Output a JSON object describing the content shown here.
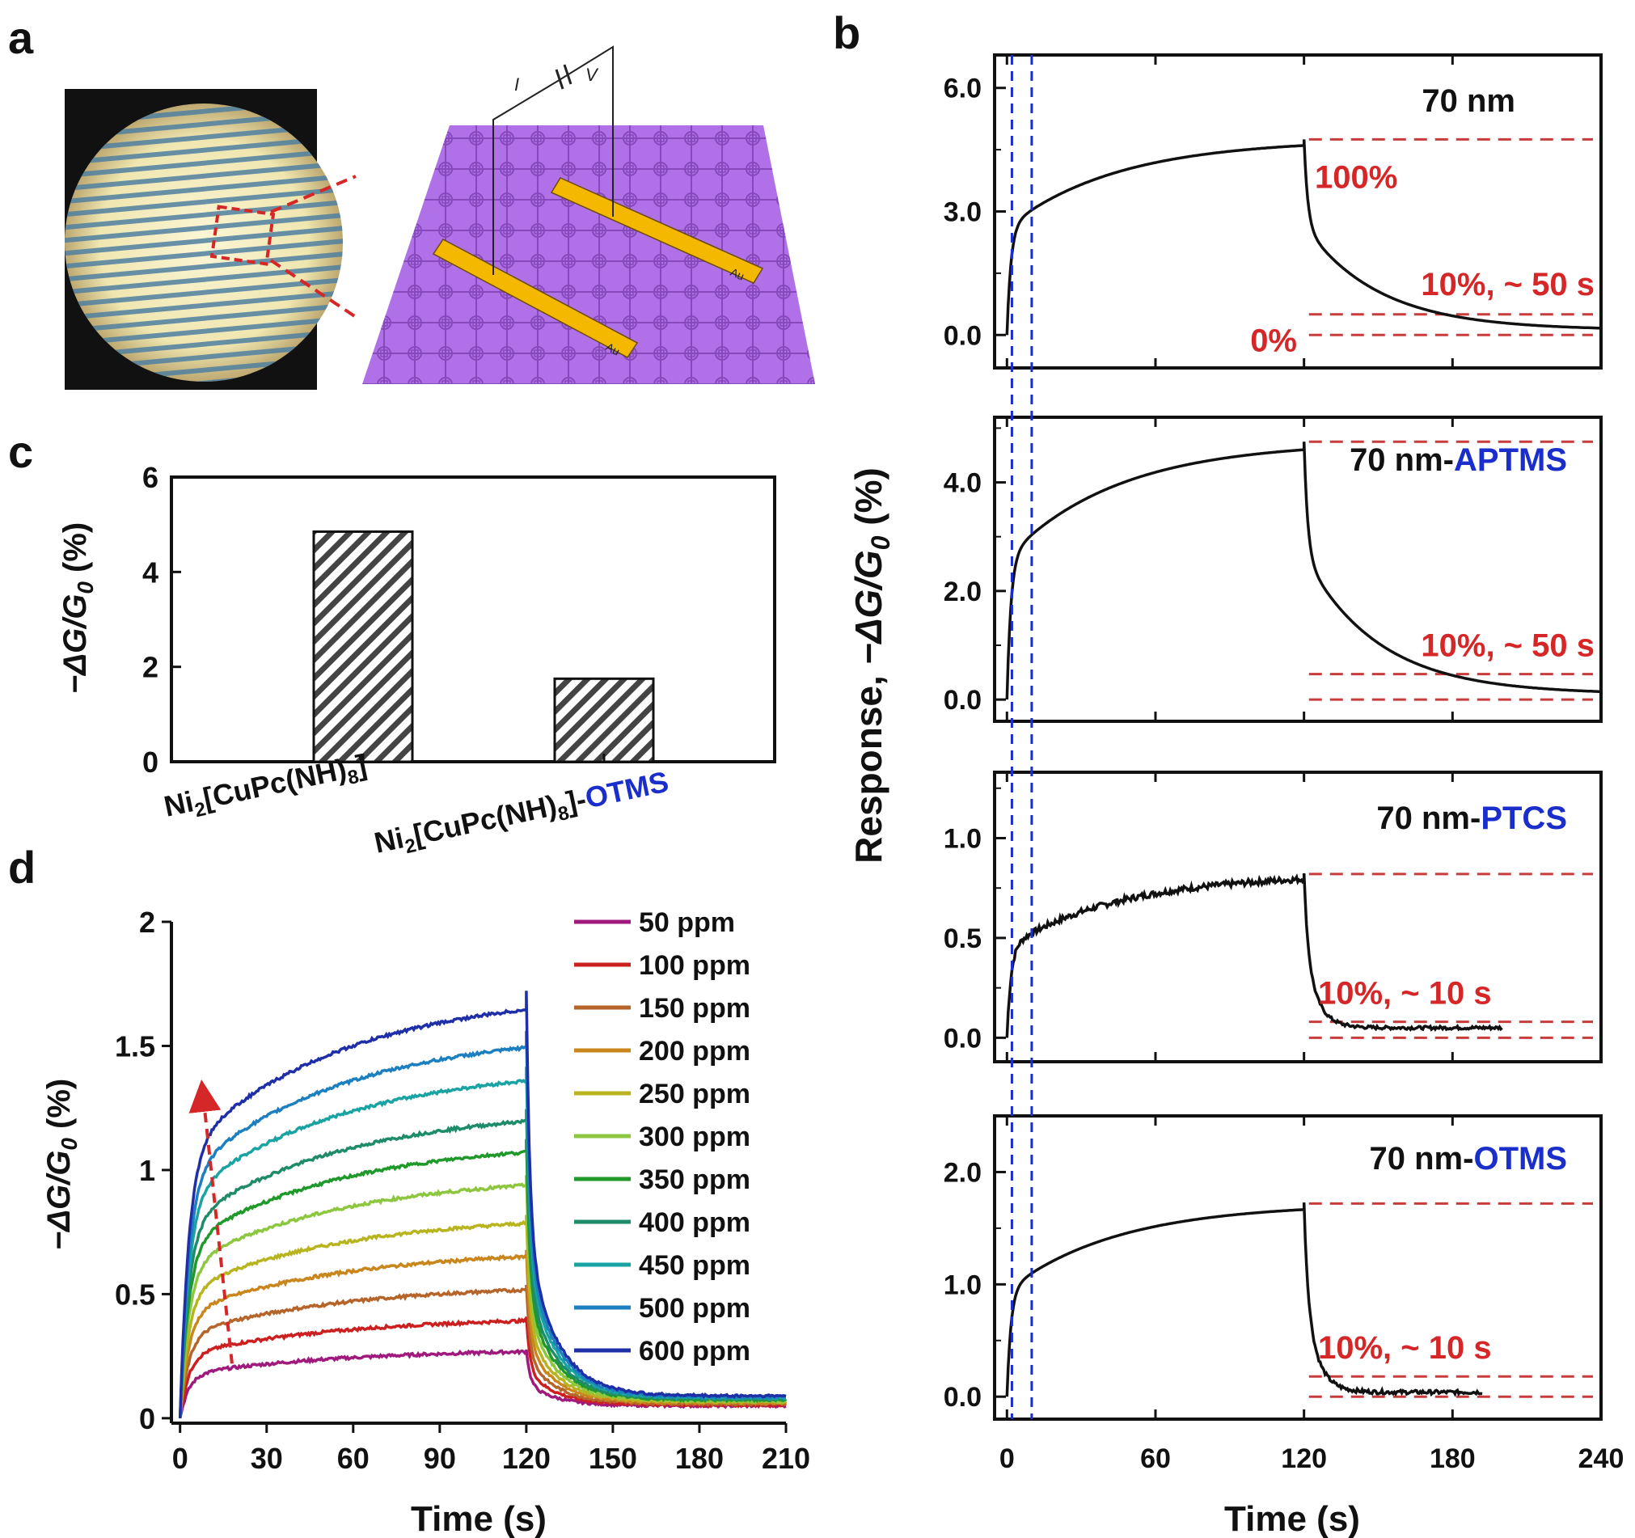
{
  "figure": {
    "panel_labels": [
      "a",
      "b",
      "c",
      "d"
    ],
    "panel_a": {
      "electrode_labels": [
        "Au",
        "Au"
      ],
      "circuit_labels": [
        "I",
        "V"
      ]
    }
  },
  "colors": {
    "black": "#111111",
    "red_dash": "#c83c3c",
    "red_text": "#d62728",
    "blue_text": "#1a2ecc",
    "blue_dash": "#1a2ecc",
    "purple": "#b070e8",
    "gold": "#f5b800"
  },
  "chart_data": [
    {
      "id": "b",
      "type": "line",
      "ylabel_prefix": "Response, ",
      "ylabel_math": "−ΔG/G",
      "ylabel_sub": "0",
      "ylabel_suffix": " (%)",
      "xlabel": "Time (s)",
      "x_ticks": [
        "0",
        "60",
        "120",
        "180",
        "240"
      ],
      "xlim": [
        -5,
        240
      ],
      "vertical_dashed_lines_x": [
        2,
        10
      ],
      "subplots": [
        {
          "label_black": "70 nm",
          "label_blue": "",
          "ylim": [
            -0.8,
            6.8
          ],
          "y_ticks": [
            "0.0",
            "3.0",
            "6.0"
          ],
          "y_tick_values": [
            0,
            3,
            6
          ],
          "series": {
            "rise_end_x": 120,
            "peak": 4.75,
            "initial": 0,
            "recovery_end_x": 240,
            "recovery_end": 0.12,
            "rise_shape": "log",
            "decay_tau": 30
          },
          "hlines": [
            4.75,
            0.5,
            0
          ],
          "annotations": [
            "100%",
            "10%, ~ 50 s",
            "0%"
          ]
        },
        {
          "label_black": "70 nm-",
          "label_blue": "APTMS",
          "ylim": [
            -0.4,
            5.2
          ],
          "y_ticks": [
            "0.0",
            "2.0",
            "4.0"
          ],
          "y_tick_values": [
            0,
            2,
            4
          ],
          "series": {
            "rise_end_x": 120,
            "peak": 4.75,
            "initial": 0,
            "recovery_end_x": 240,
            "recovery_end": 0.1,
            "rise_shape": "log",
            "decay_tau": 30
          },
          "hlines": [
            4.75,
            0.47,
            0
          ],
          "annotations": [
            "10%, ~ 50 s"
          ]
        },
        {
          "label_black": "70 nm-",
          "label_blue": "PTCS",
          "ylim": [
            -0.12,
            1.33
          ],
          "y_ticks": [
            "0.0",
            "0.5",
            "1.0"
          ],
          "y_tick_values": [
            0,
            0.5,
            1
          ],
          "series": {
            "rise_end_x": 120,
            "peak": 0.82,
            "initial": 0,
            "recovery_end_x": 200,
            "recovery_end": 0.05,
            "rise_shape": "log",
            "decay_tau": 5
          },
          "hlines": [
            0.82,
            0.08,
            0
          ],
          "annotations": [
            "10%, ~ 10 s"
          ]
        },
        {
          "label_black": "70 nm-",
          "label_blue": "OTMS",
          "ylim": [
            -0.2,
            2.5
          ],
          "y_ticks": [
            "0.0",
            "1.0",
            "2.0"
          ],
          "y_tick_values": [
            0,
            1,
            2
          ],
          "series": {
            "rise_end_x": 120,
            "peak": 1.72,
            "initial": 0,
            "recovery_end_x": 192,
            "recovery_end": 0.04,
            "rise_shape": "log",
            "decay_tau": 5
          },
          "hlines": [
            1.72,
            0.18,
            0
          ],
          "annotations": [
            "10%, ~ 10 s"
          ]
        }
      ]
    },
    {
      "id": "c",
      "type": "bar",
      "ylabel_math": "−ΔG/G",
      "ylabel_sub": "0",
      "ylabel_suffix": " (%)",
      "ylim": [
        0,
        6
      ],
      "y_ticks": [
        "0",
        "2",
        "4",
        "6"
      ],
      "y_tick_values": [
        0,
        2,
        4,
        6
      ],
      "categories": [
        {
          "base": "Ni",
          "sub1": "2",
          "mid": "[CuPc(NH)",
          "sub2": "8",
          "end": "]",
          "blue": ""
        },
        {
          "base": "Ni",
          "sub1": "2",
          "mid": "[CuPc(NH)",
          "sub2": "8",
          "end": "]-",
          "blue": "OTMS"
        }
      ],
      "values": [
        4.85,
        1.75
      ],
      "pattern": "diagonal hatch"
    },
    {
      "id": "d",
      "type": "line",
      "ylabel_math": "−ΔG/G",
      "ylabel_sub": "0",
      "ylabel_suffix": " (%)",
      "xlabel": "Time (s)",
      "xlim": [
        -3,
        210
      ],
      "ylim": [
        -0.02,
        2.0
      ],
      "x_ticks": [
        "0",
        "30",
        "60",
        "90",
        "120",
        "150",
        "180",
        "210"
      ],
      "x_tick_values": [
        0,
        30,
        60,
        90,
        120,
        150,
        180,
        210
      ],
      "y_ticks": [
        "0",
        "0.5",
        "1",
        "1.5",
        "2"
      ],
      "y_tick_values": [
        0,
        0.5,
        1,
        1.5,
        2
      ],
      "exposure_end": 120,
      "series": [
        {
          "name": "50 ppm",
          "color": "#a01a7d",
          "peak": 0.28
        },
        {
          "name": "100 ppm",
          "color": "#cc1f1f",
          "peak": 0.41
        },
        {
          "name": "150 ppm",
          "color": "#b5642a",
          "peak": 0.54
        },
        {
          "name": "200 ppm",
          "color": "#c9861c",
          "peak": 0.68
        },
        {
          "name": "250 ppm",
          "color": "#b8b420",
          "peak": 0.82
        },
        {
          "name": "300 ppm",
          "color": "#8dc63f",
          "peak": 0.98
        },
        {
          "name": "350 ppm",
          "color": "#1f9a2a",
          "peak": 1.12
        },
        {
          "name": "400 ppm",
          "color": "#1e8c6a",
          "peak": 1.25
        },
        {
          "name": "450 ppm",
          "color": "#1aa3a3",
          "peak": 1.42
        },
        {
          "name": "500 ppm",
          "color": "#1c7fbf",
          "peak": 1.56
        },
        {
          "name": "600 ppm",
          "color": "#1f2fa8",
          "peak": 1.72
        }
      ],
      "arrow": {
        "from_x": 18,
        "from_y": 0.22,
        "to_x": 8,
        "to_y": 1.3
      }
    }
  ]
}
